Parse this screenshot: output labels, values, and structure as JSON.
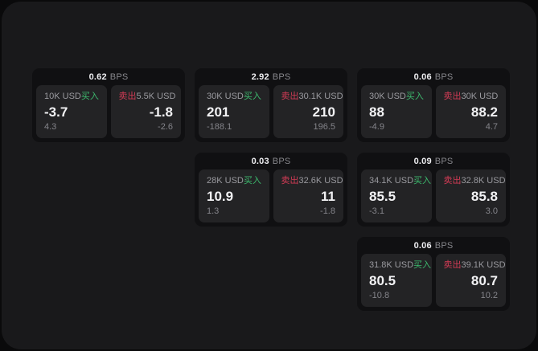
{
  "labels": {
    "bps": "BPS",
    "buy": "买入",
    "sell": "卖出"
  },
  "colors": {
    "background_outer": "#0a0a0b",
    "background_window": "#19191b",
    "card_background": "#101012",
    "panel_background": "#232325",
    "buy_green": "#3dba6e",
    "sell_red": "#d23b55",
    "primary_text": "#f2f2f4",
    "secondary_text": "#9a9a9f",
    "muted_text": "#84848a"
  },
  "cards": [
    {
      "bps": "0.62",
      "buy": {
        "amount": "10K USD",
        "price": "-3.7",
        "delta": "4.3"
      },
      "sell": {
        "amount": "5.5K USD",
        "price": "-1.8",
        "delta": "-2.6"
      }
    },
    {
      "bps": "2.92",
      "buy": {
        "amount": "30K USD",
        "price": "201",
        "delta": "-188.1"
      },
      "sell": {
        "amount": "30.1K USD",
        "price": "210",
        "delta": "196.5"
      }
    },
    {
      "bps": "0.06",
      "buy": {
        "amount": "30K USD",
        "price": "88",
        "delta": "-4.9"
      },
      "sell": {
        "amount": "30K USD",
        "price": "88.2",
        "delta": "4.7"
      }
    },
    {
      "bps": "0.03",
      "buy": {
        "amount": "28K USD",
        "price": "10.9",
        "delta": "1.3"
      },
      "sell": {
        "amount": "32.6K USD",
        "price": "11",
        "delta": "-1.8"
      }
    },
    {
      "bps": "0.09",
      "buy": {
        "amount": "34.1K USD",
        "price": "85.5",
        "delta": "-3.1"
      },
      "sell": {
        "amount": "32.8K USD",
        "price": "85.8",
        "delta": "3.0"
      }
    },
    {
      "bps": "0.06",
      "buy": {
        "amount": "31.8K USD",
        "price": "80.5",
        "delta": "-10.8"
      },
      "sell": {
        "amount": "39.1K USD",
        "price": "80.7",
        "delta": "10.2"
      }
    }
  ]
}
